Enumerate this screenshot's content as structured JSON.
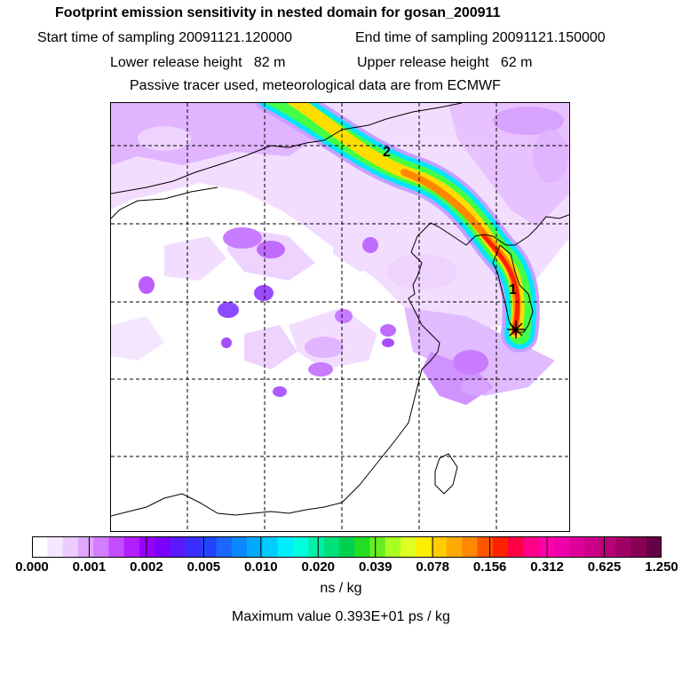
{
  "header": {
    "title": "Footprint emission sensitivity in nested domain for gosan_200911",
    "start_label": "Start time of sampling 20091121.120000",
    "end_label": "End time of sampling 20091121.150000",
    "lower_label": "Lower release height   82 m",
    "upper_label": "Upper release height   62 m",
    "note": "Passive tracer used, meteorological data are from ECMWF"
  },
  "map": {
    "markers": [
      "1",
      "2"
    ],
    "colors": {
      "plume_outer": "#00e6ff",
      "plume_mid": "#44ff44",
      "plume_core": "#ffdd00",
      "plume_hot": "#ff3300",
      "background_sensitivity": "#cc66ff"
    }
  },
  "colorbar": {
    "tick_labels": [
      "0.000",
      "0.001",
      "0.002",
      "0.005",
      "0.010",
      "0.020",
      "0.039",
      "0.078",
      "0.156",
      "0.312",
      "0.625",
      "1.250"
    ],
    "colors": [
      "#ffffff",
      "#f6e6ff",
      "#ecccff",
      "#e0a6ff",
      "#d27cff",
      "#c44cff",
      "#b21eff",
      "#9a00ff",
      "#7a00ff",
      "#5a1aff",
      "#3b2cff",
      "#2244ff",
      "#1a66ff",
      "#0a88ff",
      "#00aaff",
      "#00ccff",
      "#00eeff",
      "#00ffdd",
      "#00f0aa",
      "#00e07a",
      "#00d050",
      "#22dd22",
      "#66ee22",
      "#aaff22",
      "#ddff22",
      "#ffee00",
      "#ffcc00",
      "#ffaa00",
      "#ff8800",
      "#ff5500",
      "#ff2200",
      "#ff0044",
      "#ff0088",
      "#ff00aa",
      "#ee00aa",
      "#dd0099",
      "#cc0088",
      "#b80077",
      "#a00066",
      "#880055",
      "#660044"
    ],
    "unit": "ns / kg",
    "max_value": "Maximum value  0.393E+01 ps / kg"
  }
}
